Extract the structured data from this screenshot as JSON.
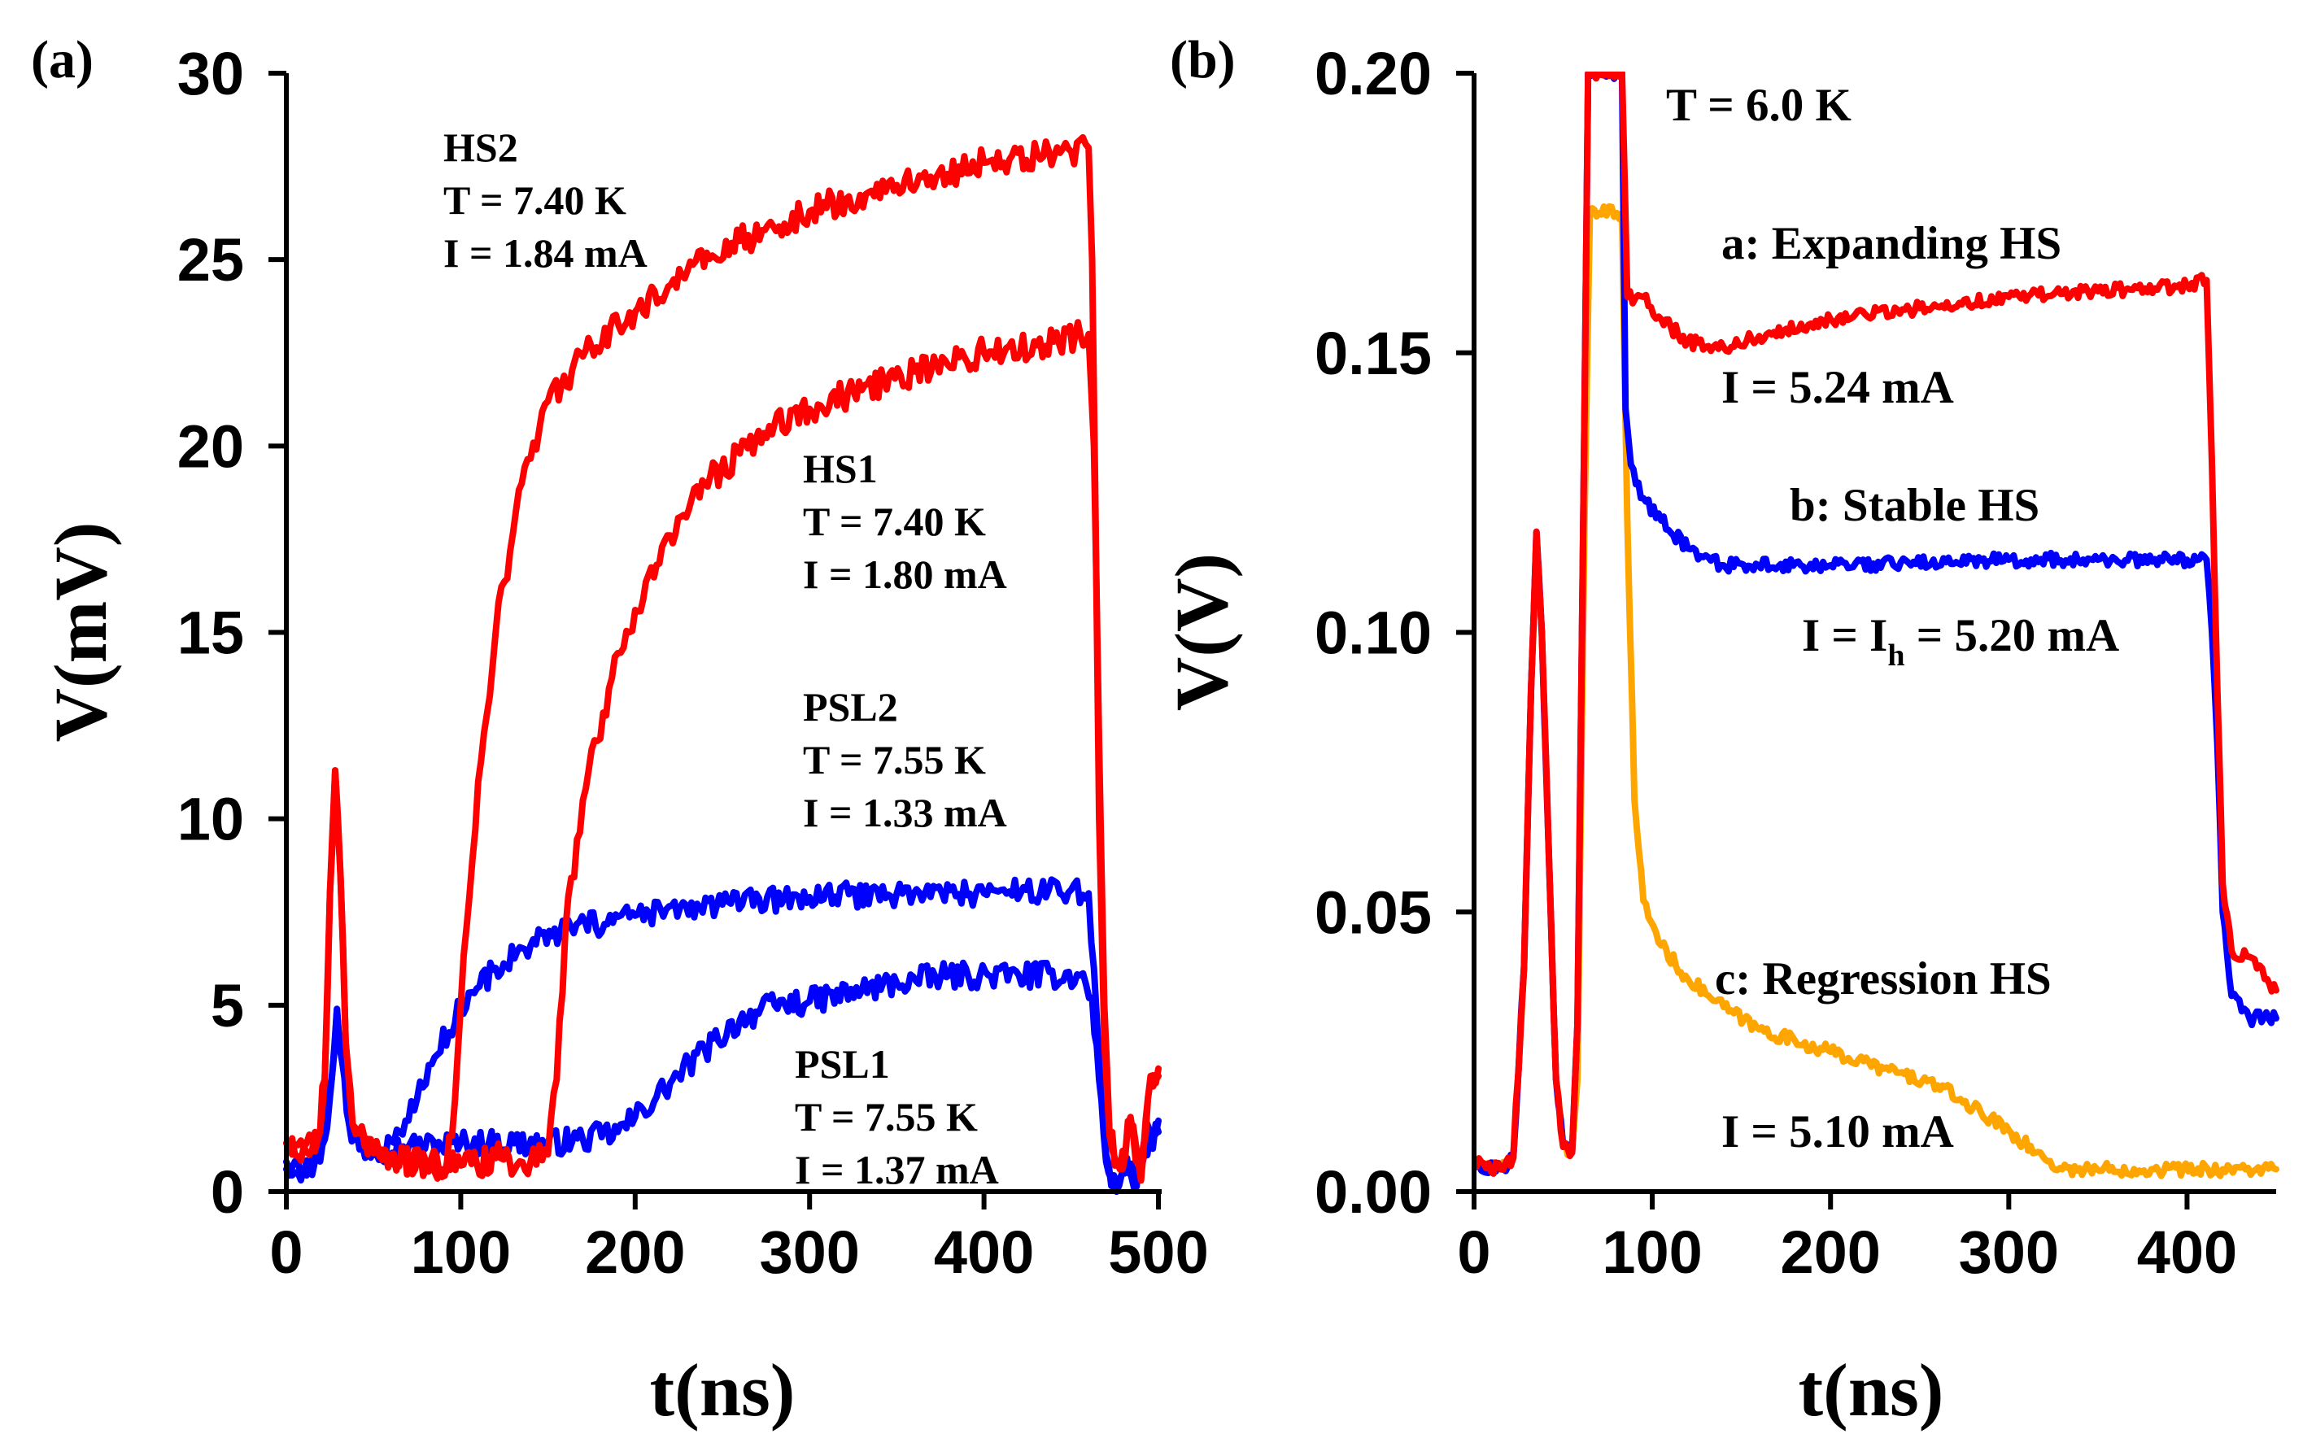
{
  "chart_data": [
    {
      "type": "line",
      "panel_label": "(a)",
      "xlabel": "t(ns)",
      "ylabel": "V(mV)",
      "xlim": [
        0,
        500
      ],
      "ylim": [
        0,
        30
      ],
      "xticks": [
        0,
        100,
        200,
        300,
        400,
        500
      ],
      "yticks": [
        0,
        5,
        10,
        15,
        20,
        25,
        30
      ],
      "grid": false,
      "series": [
        {
          "name": "PSL1",
          "color": "#0000ff",
          "noise": 0.35,
          "points": [
            [
              0,
              0.8
            ],
            [
              10,
              0.6
            ],
            [
              18,
              1.0
            ],
            [
              22,
              1.4
            ],
            [
              26,
              3.0
            ],
            [
              29,
              4.9
            ],
            [
              32,
              3.5
            ],
            [
              36,
              1.8
            ],
            [
              42,
              1.2
            ],
            [
              50,
              1.1
            ],
            [
              70,
              1.2
            ],
            [
              100,
              1.3
            ],
            [
              150,
              1.3
            ],
            [
              170,
              1.4
            ],
            [
              190,
              1.6
            ],
            [
              200,
              2.0
            ],
            [
              220,
              2.9
            ],
            [
              240,
              3.8
            ],
            [
              260,
              4.6
            ],
            [
              280,
              5.0
            ],
            [
              300,
              5.1
            ],
            [
              330,
              5.4
            ],
            [
              350,
              5.6
            ],
            [
              380,
              5.8
            ],
            [
              420,
              5.8
            ],
            [
              455,
              5.8
            ],
            [
              462,
              5.2
            ],
            [
              466,
              3.0
            ],
            [
              470,
              0.8
            ],
            [
              476,
              0.0
            ],
            [
              482,
              0.9
            ],
            [
              486,
              0.2
            ],
            [
              492,
              1.4
            ],
            [
              500,
              1.9
            ]
          ]
        },
        {
          "name": "PSL2",
          "color": "#0000ff",
          "noise": 0.35,
          "points": [
            [
              0,
              0.6
            ],
            [
              10,
              0.5
            ],
            [
              18,
              0.9
            ],
            [
              22,
              1.4
            ],
            [
              26,
              3.0
            ],
            [
              29,
              4.9
            ],
            [
              32,
              3.5
            ],
            [
              36,
              1.8
            ],
            [
              45,
              1.0
            ],
            [
              55,
              1.1
            ],
            [
              65,
              1.6
            ],
            [
              75,
              2.5
            ],
            [
              85,
              3.6
            ],
            [
              100,
              5.0
            ],
            [
              120,
              6.0
            ],
            [
              140,
              6.6
            ],
            [
              160,
              7.0
            ],
            [
              200,
              7.4
            ],
            [
              250,
              7.7
            ],
            [
              300,
              7.9
            ],
            [
              350,
              8.0
            ],
            [
              400,
              8.0
            ],
            [
              450,
              8.1
            ],
            [
              460,
              8.0
            ],
            [
              463,
              6.0
            ],
            [
              466,
              3.5
            ],
            [
              470,
              1.0
            ],
            [
              476,
              0.0
            ],
            [
              482,
              0.8
            ],
            [
              486,
              0.1
            ],
            [
              492,
              1.0
            ],
            [
              500,
              1.6
            ]
          ]
        },
        {
          "name": "HS1",
          "color": "#ff0000",
          "noise": 0.4,
          "points": [
            [
              0,
              1.3
            ],
            [
              10,
              1.2
            ],
            [
              18,
              1.4
            ],
            [
              22,
              3.0
            ],
            [
              25,
              8.0
            ],
            [
              28,
              11.3
            ],
            [
              31,
              8.5
            ],
            [
              34,
              4.0
            ],
            [
              38,
              1.8
            ],
            [
              45,
              1.4
            ],
            [
              60,
              1.0
            ],
            [
              80,
              0.8
            ],
            [
              100,
              0.7
            ],
            [
              120,
              0.9
            ],
            [
              140,
              0.8
            ],
            [
              150,
              1.0
            ],
            [
              155,
              3.0
            ],
            [
              160,
              7.0
            ],
            [
              170,
              10.5
            ],
            [
              185,
              13.5
            ],
            [
              200,
              15.6
            ],
            [
              220,
              17.6
            ],
            [
              240,
              19.0
            ],
            [
              260,
              19.8
            ],
            [
              280,
              20.6
            ],
            [
              300,
              21.0
            ],
            [
              330,
              21.5
            ],
            [
              360,
              22.0
            ],
            [
              400,
              22.5
            ],
            [
              440,
              22.8
            ],
            [
              460,
              23.0
            ],
            [
              463,
              20.0
            ],
            [
              466,
              12.0
            ],
            [
              469,
              5.0
            ],
            [
              472,
              1.5
            ],
            [
              478,
              0.6
            ],
            [
              484,
              1.8
            ],
            [
              490,
              0.3
            ],
            [
              494,
              2.5
            ],
            [
              500,
              3.1
            ]
          ]
        },
        {
          "name": "HS2",
          "color": "#ff0000",
          "noise": 0.4,
          "points": [
            [
              0,
              1.3
            ],
            [
              10,
              1.2
            ],
            [
              18,
              1.4
            ],
            [
              22,
              3.0
            ],
            [
              25,
              8.0
            ],
            [
              28,
              11.3
            ],
            [
              31,
              8.5
            ],
            [
              34,
              4.0
            ],
            [
              38,
              1.8
            ],
            [
              45,
              1.2
            ],
            [
              60,
              0.9
            ],
            [
              80,
              0.6
            ],
            [
              90,
              0.6
            ],
            [
              95,
              1.5
            ],
            [
              100,
              5.0
            ],
            [
              110,
              11.0
            ],
            [
              120,
              15.0
            ],
            [
              135,
              19.0
            ],
            [
              150,
              21.2
            ],
            [
              170,
              22.4
            ],
            [
              200,
              23.6
            ],
            [
              230,
              24.7
            ],
            [
              260,
              25.5
            ],
            [
              300,
              26.3
            ],
            [
              350,
              27.0
            ],
            [
              400,
              27.6
            ],
            [
              450,
              27.9
            ],
            [
              460,
              28.0
            ],
            [
              462,
              25.0
            ],
            [
              464,
              18.0
            ],
            [
              466,
              10.0
            ],
            [
              469,
              4.0
            ],
            [
              472,
              1.5
            ],
            [
              478,
              0.6
            ],
            [
              484,
              2.0
            ],
            [
              490,
              0.4
            ],
            [
              494,
              2.5
            ],
            [
              500,
              3.3
            ]
          ]
        }
      ],
      "annotations": [
        {
          "lines": [
            "HS2",
            "T = 7.40 K",
            "I = 1.84 mA"
          ]
        },
        {
          "lines": [
            "HS1",
            "T = 7.40 K",
            "I = 1.80 mA"
          ]
        },
        {
          "lines": [
            "PSL2",
            "T = 7.55 K",
            "I = 1.33 mA"
          ]
        },
        {
          "lines": [
            "PSL1",
            "T = 7.55 K",
            "I = 1.37 mA"
          ]
        }
      ]
    },
    {
      "type": "line",
      "panel_label": "(b)",
      "xlabel": "t(ns)",
      "ylabel": "V(V)",
      "xlim": [
        0,
        450
      ],
      "ylim": [
        0,
        0.2
      ],
      "xticks": [
        0,
        100,
        200,
        300,
        400
      ],
      "yticks": [
        0.0,
        0.05,
        0.1,
        0.15,
        0.2
      ],
      "ytick_labels": [
        "0.00",
        "0.05",
        "0.10",
        "0.15",
        "0.20"
      ],
      "grid": false,
      "series": [
        {
          "name": "c: Regression HS",
          "color": "#ffa500",
          "noise": 0.0012,
          "points": [
            [
              0,
              0.005
            ],
            [
              15,
              0.004
            ],
            [
              22,
              0.006
            ],
            [
              28,
              0.04
            ],
            [
              32,
              0.09
            ],
            [
              35,
              0.115
            ],
            [
              38,
              0.1
            ],
            [
              42,
              0.06
            ],
            [
              46,
              0.02
            ],
            [
              50,
              0.008
            ],
            [
              55,
              0.007
            ],
            [
              58,
              0.02
            ],
            [
              62,
              0.12
            ],
            [
              65,
              0.175
            ],
            [
              70,
              0.175
            ],
            [
              80,
              0.175
            ],
            [
              83,
              0.175
            ],
            [
              86,
              0.12
            ],
            [
              90,
              0.07
            ],
            [
              95,
              0.052
            ],
            [
              105,
              0.044
            ],
            [
              120,
              0.038
            ],
            [
              140,
              0.033
            ],
            [
              160,
              0.029
            ],
            [
              180,
              0.027
            ],
            [
              200,
              0.025
            ],
            [
              230,
              0.022
            ],
            [
              260,
              0.019
            ],
            [
              280,
              0.015
            ],
            [
              300,
              0.011
            ],
            [
              315,
              0.007
            ],
            [
              330,
              0.004
            ],
            [
              380,
              0.004
            ],
            [
              420,
              0.004
            ],
            [
              450,
              0.004
            ]
          ]
        },
        {
          "name": "b: Stable HS",
          "color": "#0000ff",
          "noise": 0.0012,
          "points": [
            [
              0,
              0.005
            ],
            [
              15,
              0.004
            ],
            [
              22,
              0.006
            ],
            [
              28,
              0.04
            ],
            [
              32,
              0.09
            ],
            [
              35,
              0.118
            ],
            [
              38,
              0.1
            ],
            [
              42,
              0.06
            ],
            [
              46,
              0.02
            ],
            [
              50,
              0.008
            ],
            [
              55,
              0.007
            ],
            [
              58,
              0.03
            ],
            [
              62,
              0.14
            ],
            [
              64,
              0.2
            ],
            [
              70,
              0.2
            ],
            [
              80,
              0.2
            ],
            [
              83,
              0.2
            ],
            [
              85,
              0.14
            ],
            [
              88,
              0.13
            ],
            [
              95,
              0.124
            ],
            [
              105,
              0.12
            ],
            [
              120,
              0.115
            ],
            [
              140,
              0.112
            ],
            [
              200,
              0.112
            ],
            [
              300,
              0.113
            ],
            [
              350,
              0.113
            ],
            [
              400,
              0.113
            ],
            [
              411,
              0.113
            ],
            [
              414,
              0.1
            ],
            [
              417,
              0.08
            ],
            [
              420,
              0.05
            ],
            [
              425,
              0.035
            ],
            [
              435,
              0.031
            ],
            [
              450,
              0.031
            ]
          ]
        },
        {
          "name": "a: Expanding HS",
          "color": "#ff0000",
          "noise": 0.0012,
          "points": [
            [
              0,
              0.005
            ],
            [
              15,
              0.004
            ],
            [
              22,
              0.006
            ],
            [
              28,
              0.04
            ],
            [
              32,
              0.09
            ],
            [
              35,
              0.118
            ],
            [
              38,
              0.1
            ],
            [
              42,
              0.06
            ],
            [
              46,
              0.02
            ],
            [
              50,
              0.008
            ],
            [
              55,
              0.007
            ],
            [
              58,
              0.03
            ],
            [
              62,
              0.14
            ],
            [
              64,
              0.2
            ],
            [
              70,
              0.2
            ],
            [
              80,
              0.2
            ],
            [
              83,
              0.2
            ],
            [
              86,
              0.16
            ],
            [
              95,
              0.16
            ],
            [
              105,
              0.156
            ],
            [
              120,
              0.152
            ],
            [
              140,
              0.151
            ],
            [
              160,
              0.153
            ],
            [
              200,
              0.156
            ],
            [
              250,
              0.158
            ],
            [
              300,
              0.16
            ],
            [
              350,
              0.161
            ],
            [
              400,
              0.162
            ],
            [
              411,
              0.163
            ],
            [
              414,
              0.13
            ],
            [
              417,
              0.09
            ],
            [
              420,
              0.055
            ],
            [
              425,
              0.043
            ],
            [
              435,
              0.042
            ],
            [
              445,
              0.038
            ],
            [
              450,
              0.036
            ]
          ]
        }
      ],
      "annotations": [
        {
          "text": "T = 6.0 K"
        },
        {
          "text": "a: Expanding HS"
        },
        {
          "text": "I = 5.24 mA"
        },
        {
          "text": "b: Stable HS"
        },
        {
          "text": "I = I",
          "subscript": "h",
          "suffix": " = 5.20 mA"
        },
        {
          "text": "c: Regression HS"
        },
        {
          "text": "I = 5.10 mA"
        }
      ]
    }
  ]
}
